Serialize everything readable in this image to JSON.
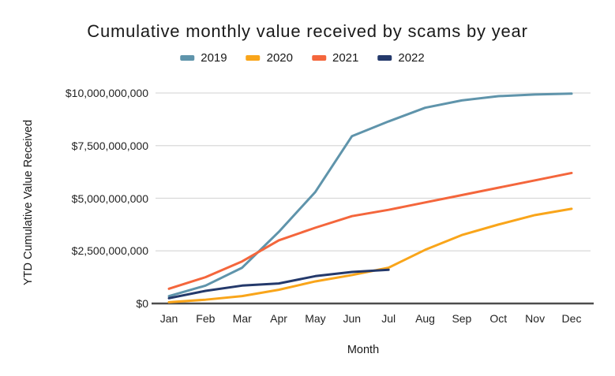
{
  "chart_data": {
    "type": "line",
    "title": "Cumulative monthly value received by scams by year",
    "xlabel": "Month",
    "ylabel": "YTD Cumulative Value Received",
    "categories": [
      "Jan",
      "Feb",
      "Mar",
      "Apr",
      "May",
      "Jun",
      "Jul",
      "Aug",
      "Sep",
      "Oct",
      "Nov",
      "Dec"
    ],
    "ylim": [
      0,
      10000000000
    ],
    "grid": true,
    "legend_position": "top",
    "yticks": [
      {
        "value": 0,
        "label": "$0"
      },
      {
        "value": 2500000000,
        "label": "$2,500,000,000"
      },
      {
        "value": 5000000000,
        "label": "$5,000,000,000"
      },
      {
        "value": 7500000000,
        "label": "$7,500,000,000"
      },
      {
        "value": 10000000000,
        "label": "$10,000,000,000"
      }
    ],
    "series": [
      {
        "name": "2019",
        "color": "#5f94ab",
        "values": [
          350000000,
          850000000,
          1700000000,
          3400000000,
          5300000000,
          7950000000,
          8650000000,
          9300000000,
          9650000000,
          9850000000,
          9930000000,
          9970000000
        ]
      },
      {
        "name": "2020",
        "color": "#f9a51a",
        "values": [
          60000000,
          180000000,
          350000000,
          650000000,
          1050000000,
          1350000000,
          1700000000,
          2550000000,
          3250000000,
          3750000000,
          4200000000,
          4500000000
        ]
      },
      {
        "name": "2021",
        "color": "#f4663c",
        "values": [
          700000000,
          1250000000,
          2000000000,
          3000000000,
          3600000000,
          4150000000,
          4450000000,
          4800000000,
          5150000000,
          5500000000,
          5850000000,
          6200000000
        ]
      },
      {
        "name": "2022",
        "color": "#24396b",
        "values": [
          250000000,
          600000000,
          850000000,
          950000000,
          1300000000,
          1500000000,
          1600000000
        ]
      }
    ],
    "colors": {
      "gridline": "#d9d9d9",
      "axis_line": "#4d4d4d",
      "text": "#191919"
    }
  }
}
